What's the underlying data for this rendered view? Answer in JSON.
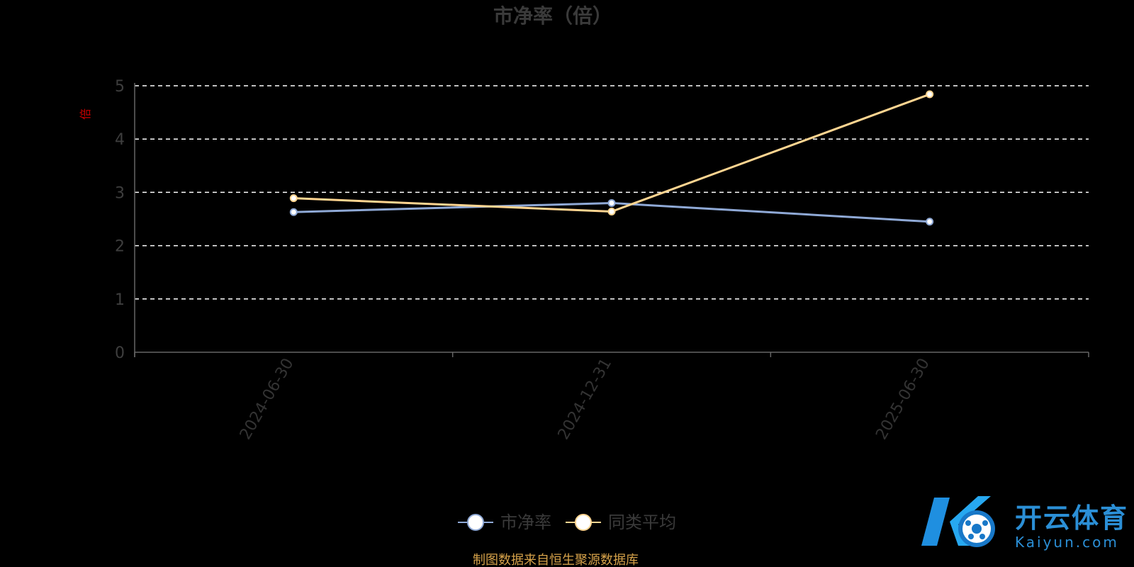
{
  "chart_data": {
    "type": "line",
    "title": "市净率（倍）",
    "ylabel": "倍",
    "categories": [
      "2024-06-30",
      "2024-12-31",
      "2025-06-30"
    ],
    "ylim": [
      0,
      5
    ],
    "yticks": [
      "0",
      "1",
      "2",
      "3",
      "4",
      "5"
    ],
    "grid": true,
    "legend_position": "bottom-center",
    "series": [
      {
        "name": "市净率",
        "values": [
          2.63,
          2.8,
          2.45
        ],
        "color": "#8fa9d6"
      },
      {
        "name": "同类平均",
        "values": [
          2.89,
          2.64,
          4.84
        ],
        "color": "#ffd591"
      }
    ]
  },
  "source_note": "制图数据来自恒生聚源数据库",
  "watermark": {
    "cn": "开云体育",
    "en": "Kaiyun.com",
    "logo_icon": "k-football-logo-icon"
  }
}
